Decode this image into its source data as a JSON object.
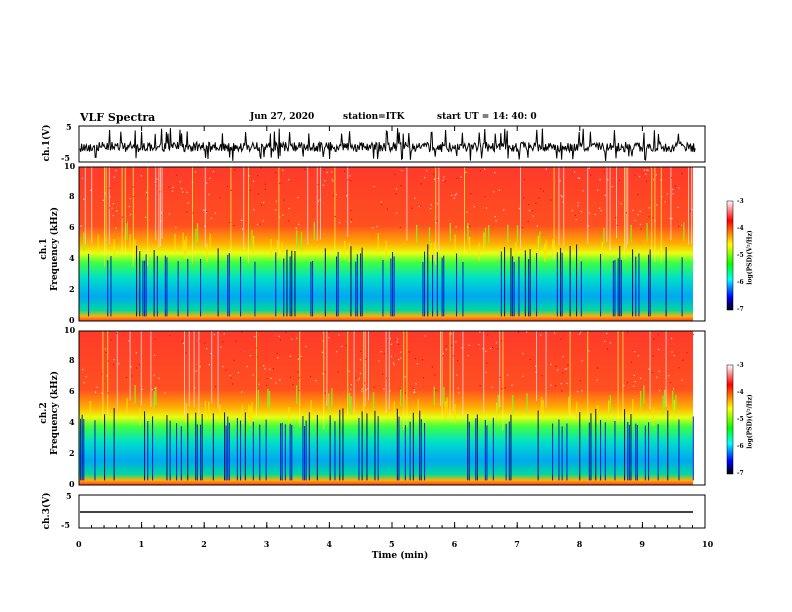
{
  "header": {
    "title": "VLF Spectra",
    "date": "Jun 27, 2020",
    "station": "station=ITK",
    "start_ut": "start UT =   14: 40: 0"
  },
  "chart_data": [
    {
      "type": "line",
      "panel": "ch1-waveform",
      "ylabel": "ch.1(V)",
      "ylim": [
        -5,
        5
      ],
      "yticks": [
        "5",
        "-5"
      ],
      "xlim": [
        0,
        10
      ]
    },
    {
      "type": "heatmap",
      "panel": "ch1-spectrogram",
      "ylabel": "ch.1 Frequency (kHz)",
      "ylabel_line1": "ch.1",
      "ylabel_line2": "Frequency (kHz)",
      "ylim": [
        0,
        10
      ],
      "yticks": [
        "0",
        "2",
        "4",
        "6",
        "8",
        "10"
      ],
      "colorbar": {
        "label": "log(PSD)(V²/Hz)",
        "range": [
          -7,
          -3
        ],
        "ticks": [
          "-3",
          "-4",
          "-5",
          "-6",
          "-7"
        ],
        "colors": [
          "#ffffff",
          "#ff0000",
          "#ffff00",
          "#00ff00",
          "#00ffff",
          "#0000ff",
          "#000000"
        ]
      }
    },
    {
      "type": "heatmap",
      "panel": "ch2-spectrogram",
      "ylabel": "ch.2 Frequency (kHz)",
      "ylabel_line1": "ch.2",
      "ylabel_line2": "Frequency (kHz)",
      "ylim": [
        0,
        10
      ],
      "yticks": [
        "0",
        "2",
        "4",
        "6",
        "8",
        "10"
      ],
      "colorbar": {
        "label": "log(PSD)(V²/Hz)",
        "range": [
          -7,
          -3
        ],
        "ticks": [
          "-3",
          "-4",
          "-5",
          "-6",
          "-7"
        ]
      }
    },
    {
      "type": "line",
      "panel": "ch3-waveform",
      "ylabel": "ch.3(V)",
      "ylim": [
        -5,
        5
      ],
      "yticks": [
        "5",
        "-5"
      ],
      "xlim": [
        0,
        10
      ],
      "approx_level": 0
    }
  ],
  "x_axis": {
    "label": "Time (min)",
    "range": [
      0,
      10
    ],
    "ticks": [
      "0",
      "1",
      "2",
      "3",
      "4",
      "5",
      "6",
      "7",
      "8",
      "9",
      "10"
    ],
    "data_end": 9.85
  }
}
